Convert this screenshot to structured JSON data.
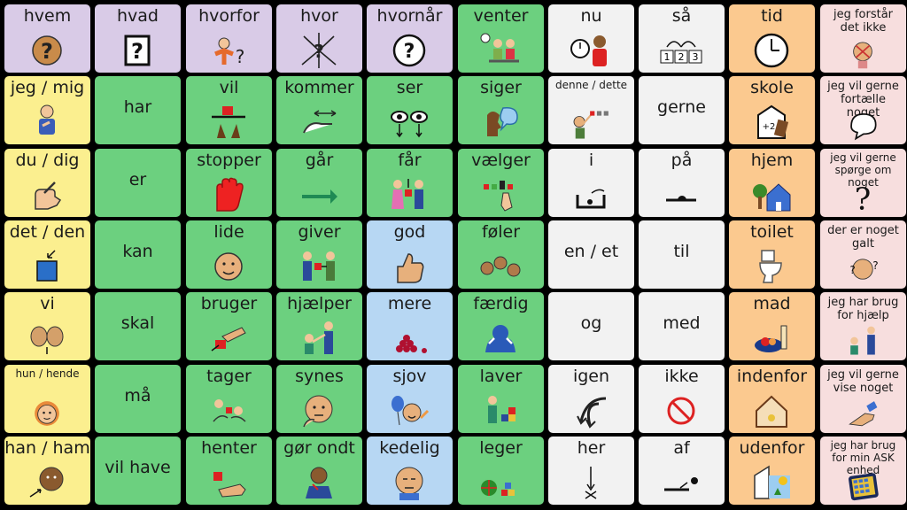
{
  "colors": {
    "purple": "#d9cbe7",
    "green": "#6cd07f",
    "white": "#f2f2f2",
    "yellow": "#fbef8f",
    "blue": "#b7d7f3",
    "orange": "#fbc98f",
    "pink": "#f7dede"
  },
  "rows": [
    [
      {
        "label": "hvem",
        "color": "purple",
        "icon": "question-face-icon"
      },
      {
        "label": "hvad",
        "color": "purple",
        "icon": "question-box-icon"
      },
      {
        "label": "hvorfor",
        "color": "purple",
        "icon": "shrug-question-icon"
      },
      {
        "label": "hvor",
        "color": "purple",
        "icon": "arrows-question-icon"
      },
      {
        "label": "hvornår",
        "color": "purple",
        "icon": "clock-question-icon"
      },
      {
        "label": "venter",
        "color": "green",
        "icon": "waiting-people-icon"
      },
      {
        "label": "nu",
        "color": "white",
        "icon": "clock-person-icon"
      },
      {
        "label": "så",
        "color": "white",
        "icon": "sequence-123-icon"
      },
      {
        "label": "tid",
        "color": "orange",
        "icon": "clock-icon"
      },
      {
        "label": "jeg forstår det ikke",
        "color": "pink",
        "icon": "confused-person-icon",
        "size": "small"
      }
    ],
    [
      {
        "label": "jeg / mig",
        "color": "yellow",
        "icon": "self-pointing-icon"
      },
      {
        "label": "har",
        "color": "green",
        "icon": "",
        "center": true
      },
      {
        "label": "vil",
        "color": "green",
        "icon": "want-hands-icon"
      },
      {
        "label": "kommer",
        "color": "green",
        "icon": "come-hand-icon"
      },
      {
        "label": "ser",
        "color": "green",
        "icon": "eyes-icon"
      },
      {
        "label": "siger",
        "color": "green",
        "icon": "speaking-head-icon"
      },
      {
        "label": "denne / dette",
        "color": "white",
        "icon": "pointing-at-icon",
        "size": "tiny"
      },
      {
        "label": "gerne",
        "color": "white",
        "icon": "",
        "center": true
      },
      {
        "label": "skole",
        "color": "orange",
        "icon": "school-board-icon"
      },
      {
        "label": "jeg vil gerne fortælle noget",
        "color": "pink",
        "icon": "speech-bubble-icon",
        "size": "small"
      }
    ],
    [
      {
        "label": "du / dig",
        "color": "yellow",
        "icon": "pointing-hand-icon"
      },
      {
        "label": "er",
        "color": "green",
        "icon": "",
        "center": true
      },
      {
        "label": "stopper",
        "color": "green",
        "icon": "stop-hand-icon"
      },
      {
        "label": "går",
        "color": "green",
        "icon": "right-arrow-icon"
      },
      {
        "label": "får",
        "color": "green",
        "icon": "receive-gift-icon"
      },
      {
        "label": "vælger",
        "color": "green",
        "icon": "choose-icon"
      },
      {
        "label": "i",
        "color": "white",
        "icon": "in-box-icon"
      },
      {
        "label": "på",
        "color": "white",
        "icon": "on-surface-icon"
      },
      {
        "label": "hjem",
        "color": "orange",
        "icon": "house-icon"
      },
      {
        "label": "jeg vil gerne spørge om noget",
        "color": "pink",
        "icon": "question-mark-icon",
        "size": "tiny"
      }
    ],
    [
      {
        "label": "det / den",
        "color": "yellow",
        "icon": "blue-square-icon"
      },
      {
        "label": "kan",
        "color": "green",
        "icon": "",
        "center": true
      },
      {
        "label": "lide",
        "color": "green",
        "icon": "like-face-icon"
      },
      {
        "label": "giver",
        "color": "green",
        "icon": "give-gift-icon"
      },
      {
        "label": "god",
        "color": "blue",
        "icon": "thumbs-up-icon"
      },
      {
        "label": "føler",
        "color": "green",
        "icon": "feelings-faces-icon"
      },
      {
        "label": "en / et",
        "color": "white",
        "icon": "",
        "center": true
      },
      {
        "label": "til",
        "color": "white",
        "icon": "",
        "center": true
      },
      {
        "label": "toilet",
        "color": "orange",
        "icon": "toilet-icon"
      },
      {
        "label": "der er noget galt",
        "color": "pink",
        "icon": "worried-face-icon",
        "size": "small"
      }
    ],
    [
      {
        "label": "vi",
        "color": "yellow",
        "icon": "two-faces-icon"
      },
      {
        "label": "skal",
        "color": "green",
        "icon": "",
        "center": true
      },
      {
        "label": "bruger",
        "color": "green",
        "icon": "use-hand-icon"
      },
      {
        "label": "hjælper",
        "color": "green",
        "icon": "help-people-icon"
      },
      {
        "label": "mere",
        "color": "blue",
        "icon": "more-pile-icon"
      },
      {
        "label": "færdig",
        "color": "green",
        "icon": "finished-hands-icon"
      },
      {
        "label": "og",
        "color": "white",
        "icon": "",
        "center": true
      },
      {
        "label": "med",
        "color": "white",
        "icon": "",
        "center": true
      },
      {
        "label": "mad",
        "color": "orange",
        "icon": "food-plate-icon"
      },
      {
        "label": "jeg har brug for hjælp",
        "color": "pink",
        "icon": "help-icon",
        "size": "small"
      }
    ],
    [
      {
        "label": "hun / hende",
        "color": "yellow",
        "icon": "girl-face-icon",
        "size": "tiny"
      },
      {
        "label": "må",
        "color": "green",
        "icon": "",
        "center": true
      },
      {
        "label": "tager",
        "color": "green",
        "icon": "take-icon"
      },
      {
        "label": "synes",
        "color": "green",
        "icon": "thinking-face-icon"
      },
      {
        "label": "sjov",
        "color": "blue",
        "icon": "fun-balloon-icon"
      },
      {
        "label": "laver",
        "color": "green",
        "icon": "make-blocks-icon"
      },
      {
        "label": "igen",
        "color": "white",
        "icon": "again-arrows-icon"
      },
      {
        "label": "ikke",
        "color": "white",
        "icon": "no-sign-icon"
      },
      {
        "label": "indenfor",
        "color": "orange",
        "icon": "inside-house-icon"
      },
      {
        "label": "jeg vil gerne vise noget",
        "color": "pink",
        "icon": "show-hand-icon",
        "size": "small"
      }
    ],
    [
      {
        "label": "han / ham",
        "color": "yellow",
        "icon": "boy-face-icon"
      },
      {
        "label": "vil have",
        "color": "green",
        "icon": "",
        "center": true
      },
      {
        "label": "henter",
        "color": "green",
        "icon": "fetch-hand-icon"
      },
      {
        "label": "gør ondt",
        "color": "green",
        "icon": "hurt-person-icon"
      },
      {
        "label": "kedelig",
        "color": "blue",
        "icon": "bored-face-icon"
      },
      {
        "label": "leger",
        "color": "green",
        "icon": "play-toys-icon"
      },
      {
        "label": "her",
        "color": "white",
        "icon": "here-arrow-icon"
      },
      {
        "label": "af",
        "color": "white",
        "icon": "off-arrow-icon"
      },
      {
        "label": "udenfor",
        "color": "orange",
        "icon": "outside-sun-icon"
      },
      {
        "label": "jeg har brug for min ASK enhed",
        "color": "pink",
        "icon": "tablet-device-icon",
        "size": "tiny"
      }
    ]
  ]
}
